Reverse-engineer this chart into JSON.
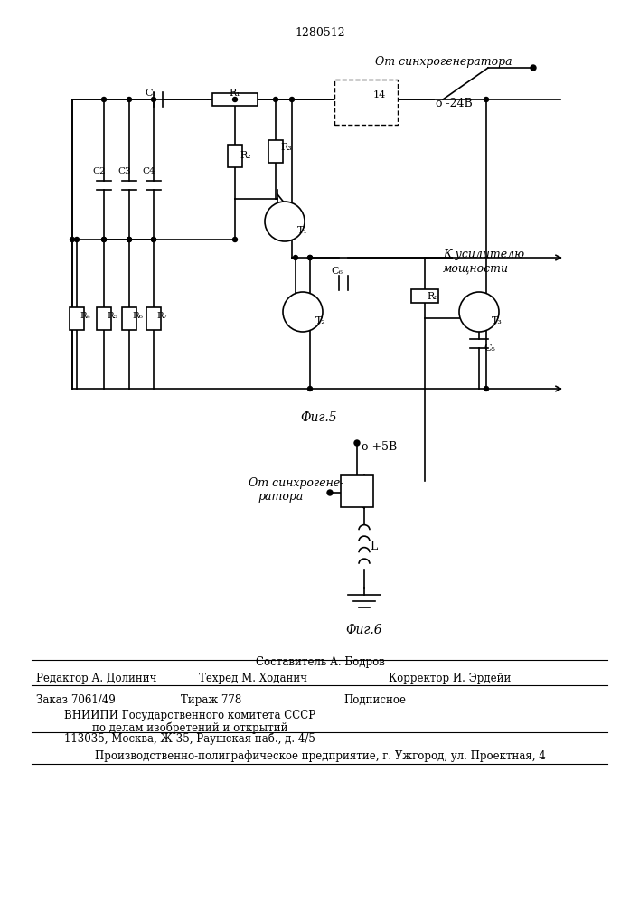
{
  "title": "1280512",
  "bg_color": "#ffffff",
  "line_color": "#000000",
  "fig5_caption": "Фиг.5",
  "fig6_caption": "Фиг.6",
  "text_patent": "1280512",
  "footer_line1": "Составитель А. Бодров",
  "footer_line2_left": "Редактор А. Долинич",
  "footer_line2_mid": "Техред М. Ходанич",
  "footer_line2_right": "Корректор И. Эрдейи",
  "footer_line3_left": "Заказ 7061/49",
  "footer_line3_mid": "Тираж 778",
  "footer_line3_right": "Подписное",
  "footer_line4": "ВНИИПИ Государственного комитета СССР",
  "footer_line5": "по делам изобретений и открытий",
  "footer_line6": "113035, Москва, Ж-35, Раушская наб., д. 4/5",
  "footer_line7": "Производственно-полиграфическое предприятие, г. Ужгород, ул. Проектная, 4",
  "label_from_sync": "От синхрогенератора",
  "label_minus24": "о -24В",
  "label_to_amp": "К усилителю",
  "label_moshnosti": "мощности",
  "label_C1": "С₁",
  "label_C2": "С2",
  "label_C3": "С3",
  "label_C4": "С4",
  "label_C5": "С₅",
  "label_C6": "С₆",
  "label_R1": "R₁",
  "label_R2": "R₂",
  "label_R3": "R₃",
  "label_R4": "R₄",
  "label_R5": "R₅",
  "label_R6": "R₆",
  "label_R7": "R₇",
  "label_R8": "R₈",
  "label_T1": "T₁",
  "label_T2": "T₂",
  "label_T3": "T₃",
  "label_14": "14",
  "label_L": "L",
  "label_plus5V": "о +5В",
  "label_from_sync2_1": "От синхрогене-",
  "label_from_sync2_2": "ратора"
}
